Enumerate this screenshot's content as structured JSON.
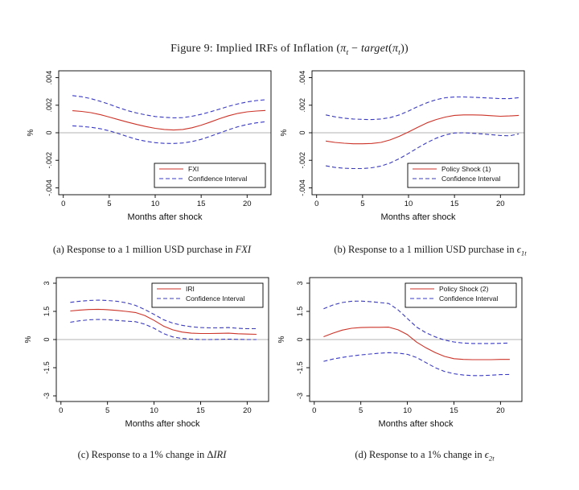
{
  "page": {
    "background": "#ffffff"
  },
  "figure": {
    "title_segments": [
      {
        "t": "Figure 9: Implied IRFs of Inflation ("
      },
      {
        "t": "π",
        "i": true
      },
      {
        "t": "t",
        "i": true,
        "sub": true
      },
      {
        "t": " − "
      },
      {
        "t": "target",
        "i": true
      },
      {
        "t": "("
      },
      {
        "t": "π",
        "i": true
      },
      {
        "t": "t",
        "i": true,
        "sub": true
      },
      {
        "t": "))"
      }
    ]
  },
  "colors": {
    "line_red": "#cc3328",
    "line_blue": "#3a3ac0",
    "zero_line": "#b3b3b3",
    "frame": "#000000",
    "text": "#111111"
  },
  "captions": {
    "a": [
      {
        "t": "(a) Response to a 1 million USD purchase in "
      },
      {
        "t": "FXI",
        "i": true
      }
    ],
    "b": [
      {
        "t": "(b) Response to a 1 million USD purchase in "
      },
      {
        "t": "ϵ",
        "i": true
      },
      {
        "t": "1t",
        "i": true,
        "sub": true
      }
    ],
    "c": [
      {
        "t": "(c) Response to a 1% change in "
      },
      {
        "t": "Δ"
      },
      {
        "t": "IRI",
        "i": true
      }
    ],
    "d": [
      {
        "t": "(d) Response to a 1% change in "
      },
      {
        "t": "ϵ",
        "i": true
      },
      {
        "t": "2t",
        "i": true,
        "sub": true
      }
    ]
  },
  "chart_data": [
    {
      "id": "a",
      "type": "line",
      "title": "",
      "xlabel": "Months after shock",
      "ylabel": "%",
      "xlim": [
        -0.5,
        22.6
      ],
      "ylim": [
        -0.0045,
        0.0045
      ],
      "xticks": [
        0,
        5,
        10,
        15,
        20
      ],
      "yticks": [
        0.004,
        0.002,
        0,
        -0.002,
        -0.004
      ],
      "ytick_labels": [
        ".004",
        ".002",
        "0",
        "-.002",
        "-.004"
      ],
      "zero_line": true,
      "grid": false,
      "legend": {
        "position": "bottom-right",
        "entries": [
          {
            "label": "FXI",
            "color": "red",
            "style": "solid"
          },
          {
            "label": "Confidence Interval",
            "color": "blue",
            "style": "dashed"
          }
        ]
      },
      "x": [
        1,
        2,
        3,
        4,
        5,
        6,
        7,
        8,
        9,
        10,
        11,
        12,
        13,
        14,
        15,
        16,
        17,
        18,
        19,
        20,
        21,
        22
      ],
      "series": [
        {
          "name": "FXI",
          "color": "red",
          "style": "solid",
          "values": [
            0.0016,
            0.00155,
            0.00146,
            0.00132,
            0.00114,
            0.00095,
            0.00077,
            0.0006,
            0.00045,
            0.00032,
            0.00024,
            0.0002,
            0.00024,
            0.00036,
            0.00055,
            0.00078,
            0.00102,
            0.00124,
            0.00141,
            0.00152,
            0.00158,
            0.00162
          ]
        },
        {
          "name": "Upper Confidence Interval",
          "color": "blue",
          "style": "dashed",
          "values": [
            0.0027,
            0.00262,
            0.00248,
            0.00229,
            0.00207,
            0.00183,
            0.00161,
            0.00143,
            0.00129,
            0.00118,
            0.00112,
            0.00108,
            0.0011,
            0.0012,
            0.00134,
            0.00152,
            0.00172,
            0.00192,
            0.0021,
            0.00224,
            0.00234,
            0.0024
          ]
        },
        {
          "name": "Lower Confidence Interval",
          "color": "blue",
          "style": "dashed",
          "values": [
            0.0005,
            0.00046,
            0.0004,
            0.0003,
            0.00014,
            -6e-05,
            -0.00028,
            -0.00048,
            -0.00062,
            -0.00072,
            -0.00077,
            -0.00078,
            -0.00074,
            -0.00064,
            -0.00048,
            -0.00026,
            -2e-05,
            0.00022,
            0.00044,
            0.0006,
            0.00072,
            0.0008
          ]
        }
      ]
    },
    {
      "id": "b",
      "type": "line",
      "title": "",
      "xlabel": "Months after shock",
      "ylabel": "%",
      "xlim": [
        -0.5,
        22.6
      ],
      "ylim": [
        -0.0045,
        0.0045
      ],
      "xticks": [
        0,
        5,
        10,
        15,
        20
      ],
      "yticks": [
        0.004,
        0.002,
        0,
        -0.002,
        -0.004
      ],
      "ytick_labels": [
        ".004",
        ".002",
        "0",
        "-.002",
        "-.004"
      ],
      "zero_line": true,
      "grid": false,
      "legend": {
        "position": "bottom-right",
        "entries": [
          {
            "label": "Policy Shock (1)",
            "color": "red",
            "style": "solid"
          },
          {
            "label": "Confidence Interval",
            "color": "blue",
            "style": "dashed"
          }
        ]
      },
      "x": [
        1,
        2,
        3,
        4,
        5,
        6,
        7,
        8,
        9,
        10,
        11,
        12,
        13,
        14,
        15,
        16,
        17,
        18,
        19,
        20,
        21,
        22
      ],
      "series": [
        {
          "name": "Policy Shock (1)",
          "color": "red",
          "style": "solid",
          "values": [
            -0.0006,
            -0.0007,
            -0.00076,
            -0.0008,
            -0.0008,
            -0.00078,
            -0.0007,
            -0.00052,
            -0.00026,
            6e-05,
            0.0004,
            0.00072,
            0.00096,
            0.00114,
            0.00126,
            0.0013,
            0.0013,
            0.00128,
            0.00124,
            0.0012,
            0.00122,
            0.00126
          ]
        },
        {
          "name": "Upper Confidence Interval",
          "color": "blue",
          "style": "dashed",
          "values": [
            0.0013,
            0.00116,
            0.00106,
            0.001,
            0.00097,
            0.00096,
            0.001,
            0.0011,
            0.0013,
            0.00158,
            0.0019,
            0.00218,
            0.0024,
            0.00254,
            0.0026,
            0.0026,
            0.00258,
            0.00255,
            0.00252,
            0.00248,
            0.00248,
            0.00255
          ]
        },
        {
          "name": "Lower Confidence Interval",
          "color": "blue",
          "style": "dashed",
          "values": [
            -0.0024,
            -0.00252,
            -0.00258,
            -0.0026,
            -0.0026,
            -0.00254,
            -0.00242,
            -0.0022,
            -0.00188,
            -0.0015,
            -0.0011,
            -0.00072,
            -0.0004,
            -0.00016,
            -2e-05,
            0,
            -4e-05,
            -8e-05,
            -0.00014,
            -0.0002,
            -0.00022,
            -8e-05
          ]
        }
      ]
    },
    {
      "id": "c",
      "type": "line",
      "title": "",
      "xlabel": "Months after shock",
      "ylabel": "%",
      "xlim": [
        -0.5,
        22.3
      ],
      "ylim": [
        -3.3,
        3.3
      ],
      "xticks": [
        0,
        5,
        10,
        15,
        20
      ],
      "yticks": [
        3,
        1.5,
        0,
        -1.5,
        -3
      ],
      "ytick_labels": [
        "3",
        "1.5",
        "0",
        "-1.5",
        "-3"
      ],
      "zero_line": true,
      "grid": false,
      "legend": {
        "position": "top-right",
        "entries": [
          {
            "label": "IRI",
            "color": "red",
            "style": "solid"
          },
          {
            "label": "Confidence Interval",
            "color": "blue",
            "style": "dashed"
          }
        ]
      },
      "x": [
        1,
        2,
        3,
        4,
        5,
        6,
        7,
        8,
        9,
        10,
        11,
        12,
        13,
        14,
        15,
        16,
        17,
        18,
        19,
        20,
        21
      ],
      "series": [
        {
          "name": "IRI",
          "color": "red",
          "style": "solid",
          "values": [
            1.52,
            1.57,
            1.6,
            1.61,
            1.59,
            1.55,
            1.5,
            1.44,
            1.28,
            1.02,
            0.72,
            0.52,
            0.4,
            0.34,
            0.32,
            0.32,
            0.33,
            0.34,
            0.31,
            0.29,
            0.28
          ]
        },
        {
          "name": "Upper Confidence Interval",
          "color": "blue",
          "style": "dashed",
          "values": [
            1.98,
            2.04,
            2.08,
            2.1,
            2.08,
            2.04,
            1.96,
            1.82,
            1.6,
            1.34,
            1.06,
            0.88,
            0.76,
            0.68,
            0.64,
            0.62,
            0.62,
            0.64,
            0.6,
            0.58,
            0.58
          ]
        },
        {
          "name": "Lower Confidence Interval",
          "color": "blue",
          "style": "dashed",
          "values": [
            0.92,
            1.0,
            1.05,
            1.07,
            1.06,
            1.02,
            0.98,
            0.95,
            0.82,
            0.6,
            0.32,
            0.14,
            0.06,
            0.02,
            0,
            0,
            0.01,
            0.02,
            0.01,
            0,
            0
          ]
        }
      ]
    },
    {
      "id": "d",
      "type": "line",
      "title": "",
      "xlabel": "Months after shock",
      "ylabel": "%",
      "xlim": [
        -0.5,
        22.3
      ],
      "ylim": [
        -3.3,
        3.3
      ],
      "xticks": [
        0,
        5,
        10,
        15,
        20
      ],
      "yticks": [
        3,
        1.5,
        0,
        -1.5,
        -3
      ],
      "ytick_labels": [
        "3",
        "1.5",
        "0",
        "-1.5",
        "-3"
      ],
      "zero_line": true,
      "grid": false,
      "legend": {
        "position": "top-right",
        "entries": [
          {
            "label": "Policy Shock (2)",
            "color": "red",
            "style": "solid"
          },
          {
            "label": "Confidence Interval",
            "color": "blue",
            "style": "dashed"
          }
        ]
      },
      "x": [
        1,
        2,
        3,
        4,
        5,
        6,
        7,
        8,
        9,
        10,
        11,
        12,
        13,
        14,
        15,
        16,
        17,
        18,
        19,
        20,
        21
      ],
      "series": [
        {
          "name": "Policy Shock (2)",
          "color": "red",
          "style": "solid",
          "values": [
            0.15,
            0.34,
            0.5,
            0.6,
            0.64,
            0.65,
            0.65,
            0.66,
            0.52,
            0.26,
            -0.14,
            -0.44,
            -0.7,
            -0.9,
            -1.02,
            -1.06,
            -1.07,
            -1.07,
            -1.07,
            -1.06,
            -1.06
          ]
        },
        {
          "name": "Upper Confidence Interval",
          "color": "blue",
          "style": "dashed",
          "values": [
            1.64,
            1.84,
            1.97,
            2.04,
            2.05,
            2.02,
            1.97,
            1.92,
            1.58,
            1.12,
            0.66,
            0.36,
            0.14,
            -0.03,
            -0.13,
            -0.19,
            -0.21,
            -0.21,
            -0.21,
            -0.2,
            -0.19
          ]
        },
        {
          "name": "Lower Confidence Interval",
          "color": "blue",
          "style": "dashed",
          "values": [
            -1.16,
            -1.04,
            -0.95,
            -0.88,
            -0.82,
            -0.77,
            -0.73,
            -0.7,
            -0.72,
            -0.79,
            -0.96,
            -1.23,
            -1.5,
            -1.7,
            -1.82,
            -1.89,
            -1.92,
            -1.92,
            -1.9,
            -1.87,
            -1.86
          ]
        }
      ]
    }
  ]
}
